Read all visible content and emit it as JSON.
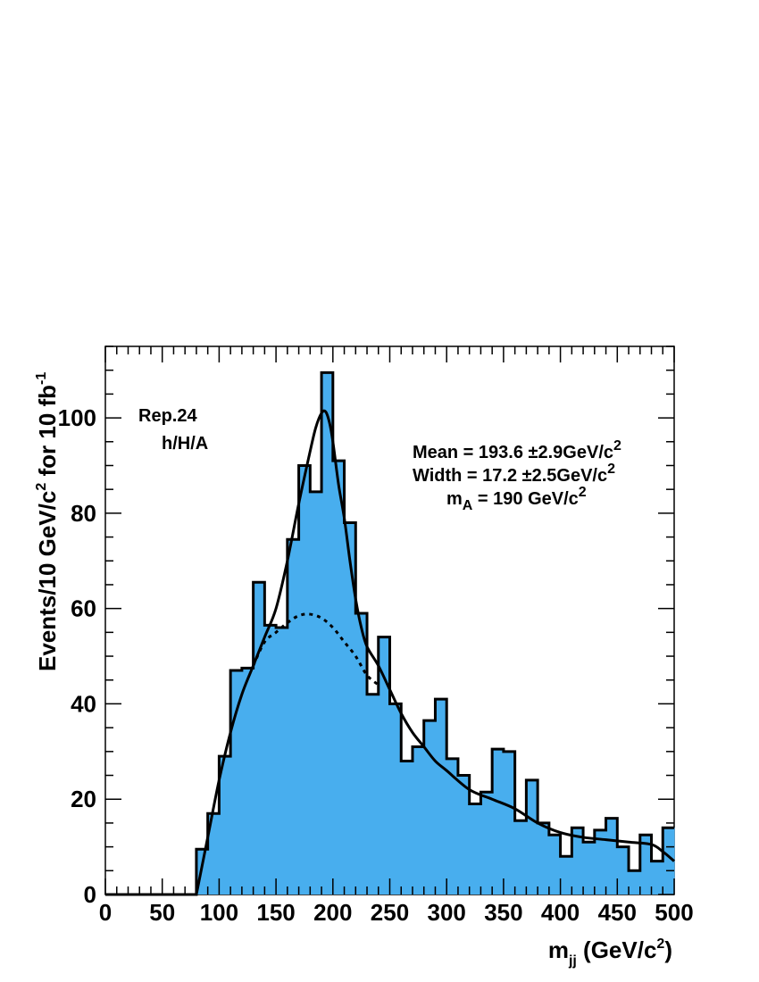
{
  "chart_data": {
    "type": "bar",
    "subtype": "histogram",
    "bin_width": 10,
    "x_bins_low": [
      0,
      10,
      20,
      30,
      40,
      50,
      60,
      70,
      80,
      90,
      100,
      110,
      120,
      130,
      140,
      150,
      160,
      170,
      180,
      190,
      200,
      210,
      220,
      230,
      240,
      250,
      260,
      270,
      280,
      290,
      300,
      310,
      320,
      330,
      340,
      350,
      360,
      370,
      380,
      390,
      400,
      410,
      420,
      430,
      440,
      450,
      460,
      470,
      480,
      490
    ],
    "values": [
      0,
      0,
      0,
      0,
      0,
      0,
      0,
      0,
      9.5,
      17,
      29,
      47,
      47.5,
      65.5,
      56.5,
      56,
      74.5,
      90,
      84.5,
      109.5,
      91,
      78,
      59,
      42,
      54,
      40,
      28,
      31,
      36.5,
      41,
      28.5,
      25,
      19,
      21.5,
      30.5,
      30,
      15.5,
      24,
      15,
      12.5,
      8,
      14,
      11,
      13.5,
      16,
      10,
      5,
      12.5,
      7,
      14
    ],
    "fill_color": "#48aeee",
    "xlim": [
      0,
      500
    ],
    "ylim": [
      0,
      115
    ],
    "x_ticks": [
      0,
      50,
      100,
      150,
      200,
      250,
      300,
      350,
      400,
      450,
      500
    ],
    "y_ticks": [
      0,
      20,
      40,
      60,
      80,
      100
    ],
    "xlabel_main": "m",
    "xlabel_sub": "jj",
    "xlabel_rest": " (GeV/c",
    "xlabel_sup": "2",
    "xlabel_close": ")",
    "ylabel_main": "Events/10 GeV/c",
    "ylabel_sup": "2",
    "ylabel_rest": " for 10 fb",
    "ylabel_sup2": "-1",
    "fit_total": {
      "style": "solid",
      "x": [
        80,
        90,
        100,
        110,
        120,
        130,
        140,
        150,
        160,
        170,
        180,
        185,
        190,
        193.6,
        197,
        200,
        205,
        210,
        215,
        220,
        225,
        230,
        240,
        250,
        260,
        270,
        280,
        290,
        300,
        320,
        340,
        360,
        380,
        400,
        420,
        440,
        460,
        480,
        490,
        500
      ],
      "y": [
        0,
        12,
        24,
        34,
        42,
        48,
        54,
        60,
        70,
        82,
        93,
        98,
        101,
        101.3,
        99,
        95,
        86,
        79,
        70,
        62,
        56,
        52,
        48,
        43,
        38,
        34,
        31,
        28,
        26,
        22,
        20,
        18,
        15,
        13,
        12,
        11.5,
        11,
        10.5,
        9,
        7
      ]
    },
    "fit_background": {
      "style": "dotted",
      "x": [
        130,
        140,
        150,
        160,
        170,
        180,
        190,
        200,
        210,
        220,
        230,
        240
      ],
      "y": [
        48,
        53,
        55,
        57,
        58.5,
        58.8,
        58,
        56,
        53,
        50,
        46,
        44
      ]
    },
    "annotations": {
      "rep": "Rep.24",
      "process": "h/H/A",
      "mean": "Mean = 193.6 ±2.9GeV/c",
      "mean_sup": "2",
      "width": "Width = 17.2 ±2.5GeV/c",
      "width_sup": "2",
      "mA_main": "m",
      "mA_sub": "A",
      "mA_rest": " = 190 GeV/c",
      "mA_sup": "2"
    }
  }
}
